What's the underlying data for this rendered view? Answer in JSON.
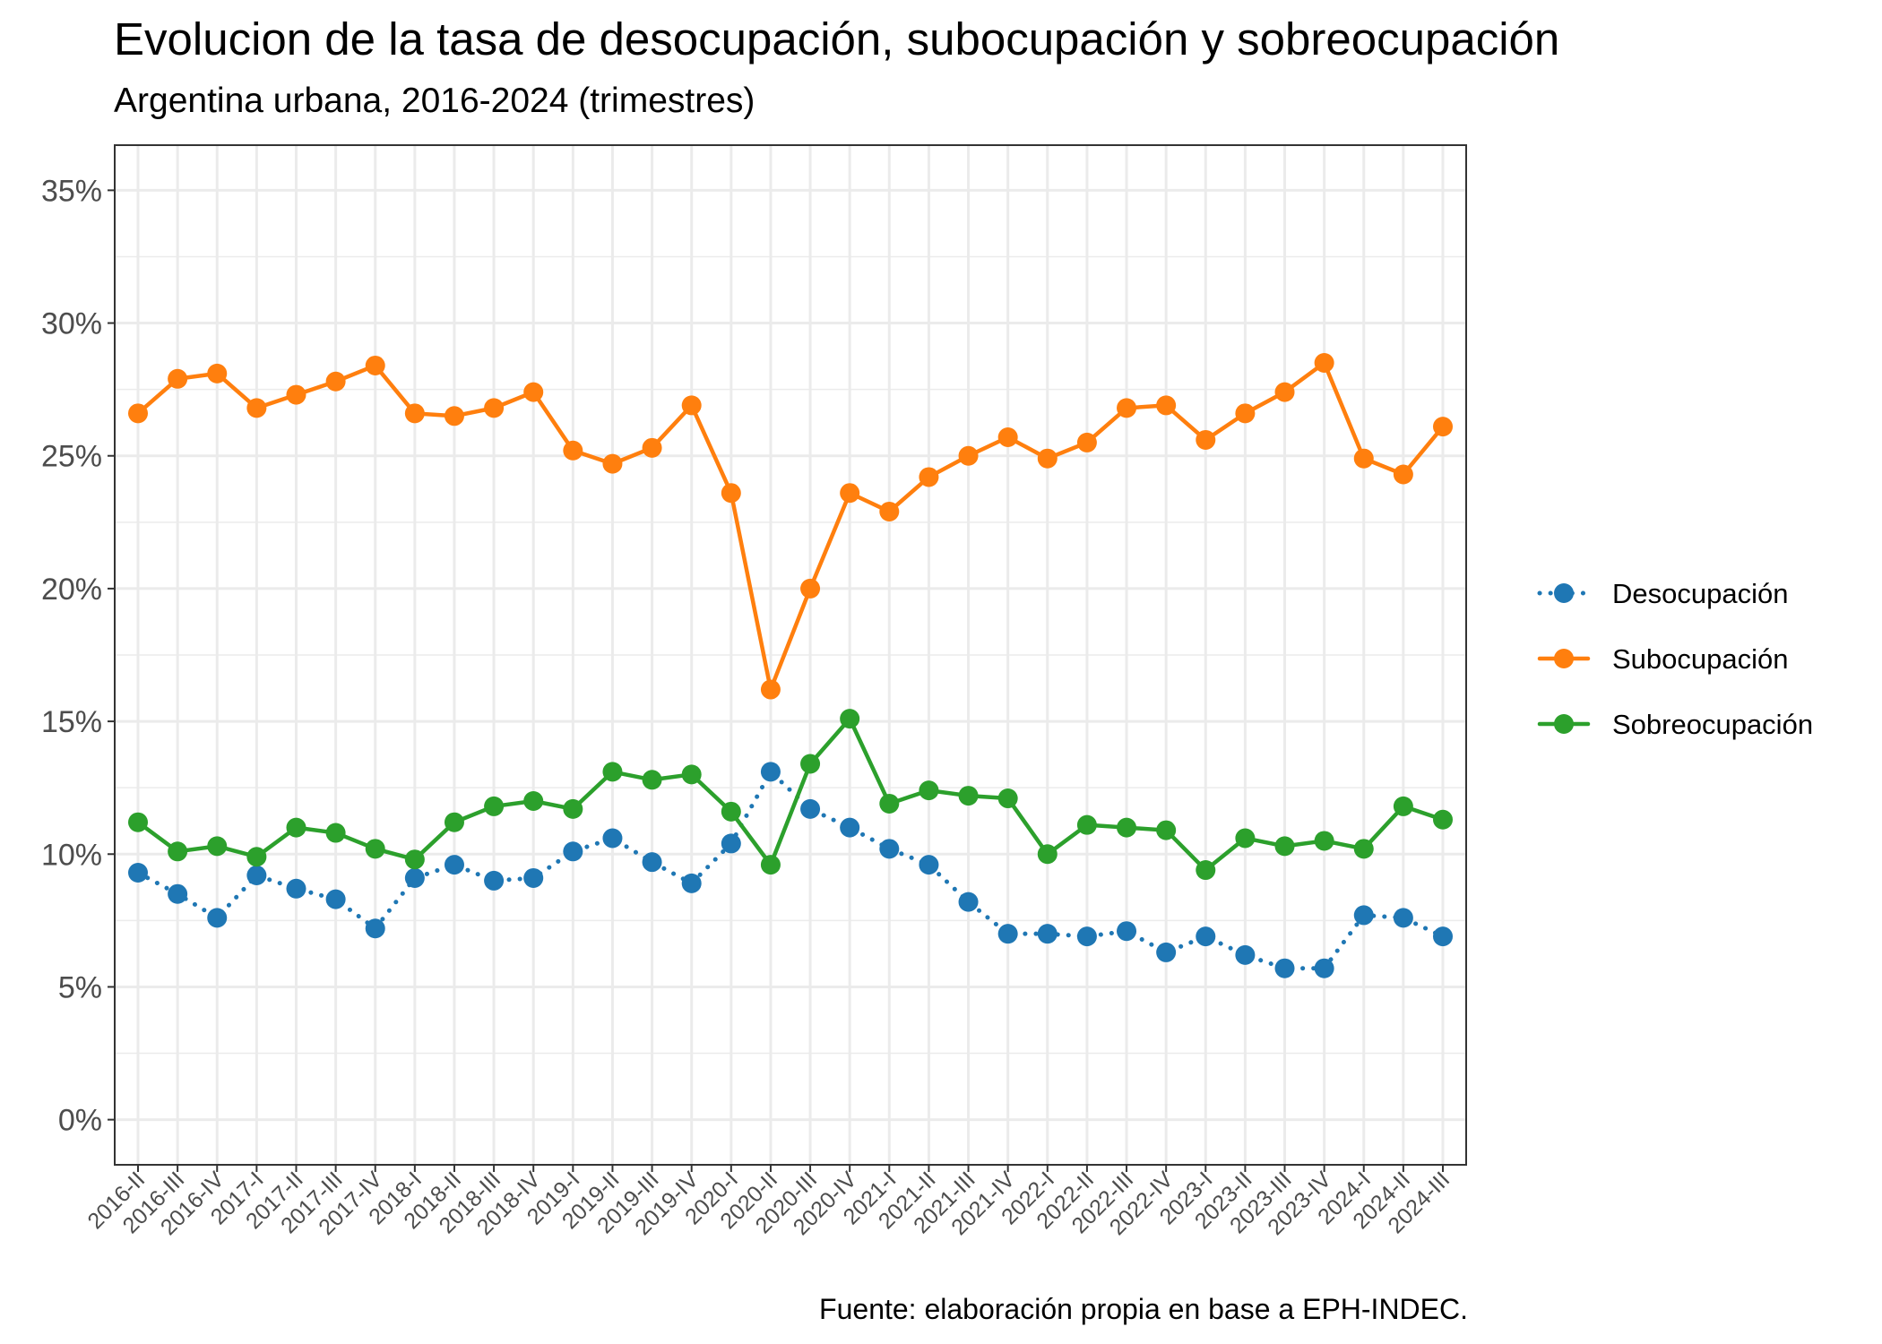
{
  "title": "Evolucion de la tasa de desocupación, subocupación y sobreocupación",
  "subtitle": "Argentina urbana, 2016-2024 (trimestres)",
  "caption": "Fuente: elaboración propia en base a EPH-INDEC.",
  "chart_data": {
    "type": "line",
    "title": "Evolucion de la tasa de desocupación, subocupación y sobreocupación",
    "subtitle": "Argentina urbana, 2016-2024 (trimestres)",
    "xlabel": "",
    "ylabel": "",
    "ylim": [
      -1.7,
      36.7
    ],
    "yticks": [
      0,
      5,
      10,
      15,
      20,
      25,
      30,
      35
    ],
    "ytick_labels": [
      "0%",
      "5%",
      "10%",
      "15%",
      "20%",
      "25%",
      "30%",
      "35%"
    ],
    "grid": true,
    "legend_position": "right",
    "categories": [
      "2016-II",
      "2016-III",
      "2016-IV",
      "2017-I",
      "2017-II",
      "2017-III",
      "2017-IV",
      "2018-I",
      "2018-II",
      "2018-III",
      "2018-IV",
      "2019-I",
      "2019-II",
      "2019-III",
      "2019-IV",
      "2020-I",
      "2020-II",
      "2020-III",
      "2020-IV",
      "2021-I",
      "2021-II",
      "2021-III",
      "2021-IV",
      "2022-I",
      "2022-II",
      "2022-III",
      "2022-IV",
      "2023-I",
      "2023-II",
      "2023-III",
      "2023-IV",
      "2024-I",
      "2024-II",
      "2024-III"
    ],
    "series": [
      {
        "name": "Desocupación",
        "color": "#1f77b4",
        "line_style": "dotted",
        "values": [
          9.3,
          8.5,
          7.6,
          9.2,
          8.7,
          8.3,
          7.2,
          9.1,
          9.6,
          9.0,
          9.1,
          10.1,
          10.6,
          9.7,
          8.9,
          10.4,
          13.1,
          11.7,
          11.0,
          10.2,
          9.6,
          8.2,
          7.0,
          7.0,
          6.9,
          7.1,
          6.3,
          6.9,
          6.2,
          5.7,
          5.7,
          7.7,
          7.6,
          6.9
        ]
      },
      {
        "name": "Subocupación",
        "color": "#ff7f0e",
        "line_style": "solid",
        "values": [
          26.6,
          27.9,
          28.1,
          26.8,
          27.3,
          27.8,
          28.4,
          26.6,
          26.5,
          26.8,
          27.4,
          25.2,
          24.7,
          25.3,
          26.9,
          23.6,
          16.2,
          20.0,
          23.6,
          22.9,
          24.2,
          25.0,
          25.7,
          24.9,
          25.5,
          26.8,
          26.9,
          25.6,
          26.6,
          27.4,
          28.5,
          24.9,
          24.3,
          26.1
        ]
      },
      {
        "name": "Sobreocupación",
        "color": "#2ca02c",
        "line_style": "solid",
        "values": [
          11.2,
          10.1,
          10.3,
          9.9,
          11.0,
          10.8,
          10.2,
          9.8,
          11.2,
          11.8,
          12.0,
          11.7,
          13.1,
          12.8,
          13.0,
          11.6,
          9.6,
          13.4,
          15.1,
          11.9,
          12.4,
          12.2,
          12.1,
          10.0,
          11.1,
          11.0,
          10.9,
          9.4,
          10.6,
          10.3,
          10.5,
          10.2,
          11.8,
          11.3
        ]
      }
    ]
  }
}
